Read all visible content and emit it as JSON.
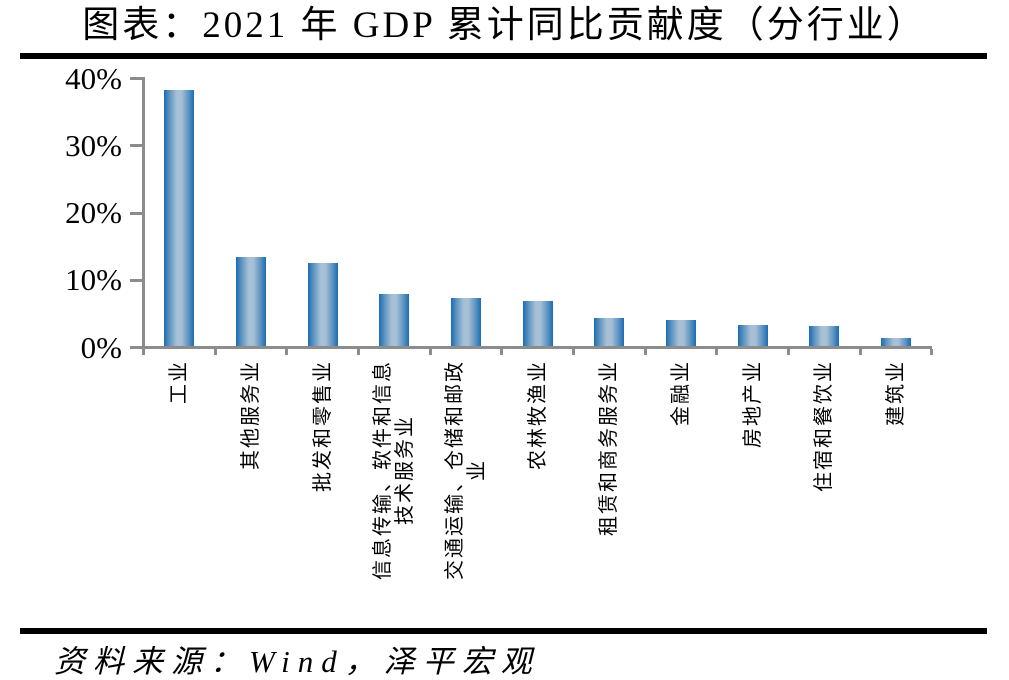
{
  "title": "图表：2021 年 GDP 累计同比贡献度（分行业）",
  "source": "资料来源：Wind，泽平宏观",
  "colors": {
    "bar_edge": "#1a6cb4",
    "bar_mid": "#5d93c0",
    "bar_center": "#a6c0d5",
    "axis": "#8c8c8c",
    "text": "#000000",
    "divider": "#000000",
    "background": "#ffffff"
  },
  "chart_data": {
    "type": "bar",
    "title": "图表：2021 年 GDP 累计同比贡献度（分行业）",
    "xlabel": "",
    "ylabel": "",
    "unit": "%",
    "ylim": [
      0,
      40
    ],
    "grid": false,
    "legend": "none",
    "categories": [
      "工业",
      "其他服务业",
      "批发和零售业",
      "信息传输、软件和信息技术服务业",
      "交通运输、仓储和邮政业",
      "农林牧渔业",
      "租赁和商务服务业",
      "金融业",
      "房地产业",
      "住宿和餐饮业",
      "建筑业"
    ],
    "category_label_lines": [
      [
        "工业"
      ],
      [
        "其他服务业"
      ],
      [
        "批发和零售业"
      ],
      [
        "信息传输、软件和信息",
        "技术服务业"
      ],
      [
        "交通运输、仓储和邮政",
        "业"
      ],
      [
        "农林牧渔业"
      ],
      [
        "租赁和商务服务业"
      ],
      [
        "金融业"
      ],
      [
        "房地产业"
      ],
      [
        "住宿和餐饮业"
      ],
      [
        "建筑业"
      ]
    ],
    "values": [
      38.0,
      13.3,
      12.4,
      7.8,
      7.2,
      6.7,
      4.2,
      3.8,
      3.1,
      2.9,
      1.2
    ],
    "ytick_labels": [
      "0%",
      "10%",
      "20%",
      "30%",
      "40%"
    ],
    "ytick_values": [
      0,
      10,
      20,
      30,
      40
    ]
  }
}
